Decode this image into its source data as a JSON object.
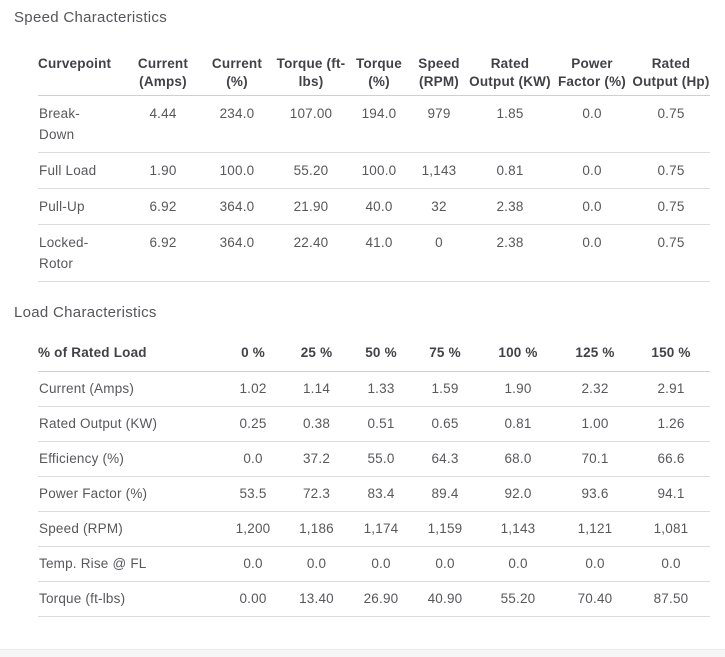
{
  "colors": {
    "header_text": "#414247",
    "body_text": "#57585c",
    "title_text": "#54565a",
    "header_border": "#cfcfcf",
    "row_border": "#dcdcdc",
    "bottom_strip_bg": "#f6f6f6"
  },
  "speed_section": {
    "title": "Speed Characteristics",
    "columns": [
      "Curvepoint",
      "Current (Amps)",
      "Current (%)",
      "Torque (ft-lbs)",
      "Torque (%)",
      "Speed (RPM)",
      "Rated Output (KW)",
      "Power Factor (%)",
      "Rated Output (Hp)"
    ],
    "rows": [
      {
        "label": "Break-Down",
        "values": [
          "4.44",
          "234.0",
          "107.00",
          "194.0",
          "979",
          "1.85",
          "0.0",
          "0.75"
        ]
      },
      {
        "label": "Full Load",
        "values": [
          "1.90",
          "100.0",
          "55.20",
          "100.0",
          "1,143",
          "0.81",
          "0.0",
          "0.75"
        ]
      },
      {
        "label": "Pull-Up",
        "values": [
          "6.92",
          "364.0",
          "21.90",
          "40.0",
          "32",
          "2.38",
          "0.0",
          "0.75"
        ]
      },
      {
        "label": "Locked-Rotor",
        "values": [
          "6.92",
          "364.0",
          "22.40",
          "41.0",
          "0",
          "2.38",
          "0.0",
          "0.75"
        ]
      }
    ]
  },
  "load_section": {
    "title": "Load Characteristics",
    "columns": [
      "% of Rated Load",
      "0 %",
      "25 %",
      "50 %",
      "75 %",
      "100 %",
      "125 %",
      "150 %"
    ],
    "rows": [
      {
        "label": "Current (Amps)",
        "values": [
          "1.02",
          "1.14",
          "1.33",
          "1.59",
          "1.90",
          "2.32",
          "2.91"
        ]
      },
      {
        "label": "Rated Output (KW)",
        "values": [
          "0.25",
          "0.38",
          "0.51",
          "0.65",
          "0.81",
          "1.00",
          "1.26"
        ]
      },
      {
        "label": "Efficiency (%)",
        "values": [
          "0.0",
          "37.2",
          "55.0",
          "64.3",
          "68.0",
          "70.1",
          "66.6"
        ]
      },
      {
        "label": "Power Factor (%)",
        "values": [
          "53.5",
          "72.3",
          "83.4",
          "89.4",
          "92.0",
          "93.6",
          "94.1"
        ]
      },
      {
        "label": "Speed (RPM)",
        "values": [
          "1,200",
          "1,186",
          "1,174",
          "1,159",
          "1,143",
          "1,121",
          "1,081"
        ]
      },
      {
        "label": "Temp. Rise @ FL",
        "values": [
          "0.0",
          "0.0",
          "0.0",
          "0.0",
          "0.0",
          "0.0",
          "0.0"
        ]
      },
      {
        "label": "Torque (ft-lbs)",
        "values": [
          "0.00",
          "13.40",
          "26.90",
          "40.90",
          "55.20",
          "70.40",
          "87.50"
        ]
      }
    ]
  }
}
